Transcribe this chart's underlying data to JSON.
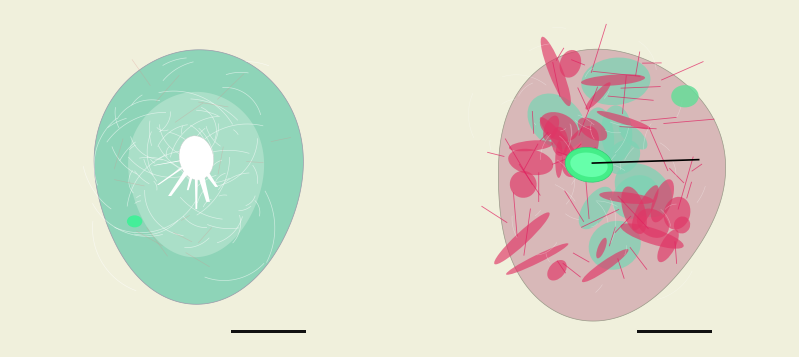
{
  "background_color": "#f0f0dc",
  "fig_width": 7.99,
  "fig_height": 3.57,
  "dpi": 100,
  "scale_bar_color": "#111111",
  "scale_bar_width": 0.44,
  "scale_bar_height": 0.018
}
